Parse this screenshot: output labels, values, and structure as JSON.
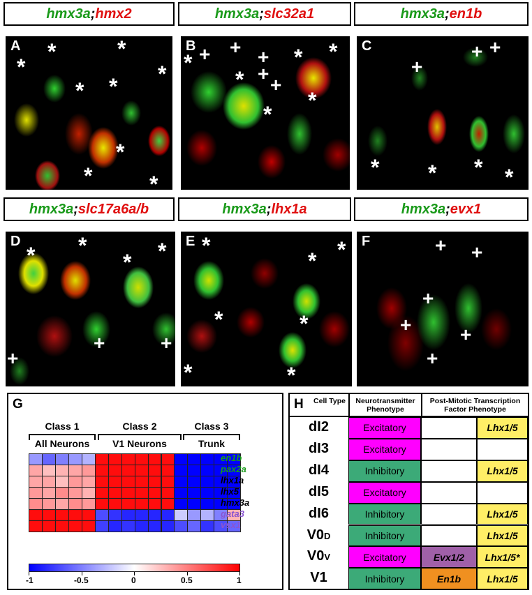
{
  "headers": [
    {
      "green": "hmx3a",
      "sep": ";",
      "red": "hmx2"
    },
    {
      "green": "hmx3a",
      "sep": ";",
      "red": "slc32a1"
    },
    {
      "green": "hmx3a",
      "sep": ";",
      "red": "en1b"
    },
    {
      "green": "hmx3a",
      "sep": ";",
      "red": "slc17a6a/b"
    },
    {
      "green": "hmx3a",
      "sep": ";",
      "red": "lhx1a"
    },
    {
      "green": "hmx3a",
      "sep": ";",
      "red": "evx1"
    }
  ],
  "panel_labels": [
    "A",
    "B",
    "C",
    "D",
    "E",
    "F"
  ],
  "marks": {
    "star": "*",
    "plus": "+"
  },
  "panel_g": {
    "label": "G",
    "classes": [
      {
        "title": "Class 1",
        "subtitle": "All Neurons"
      },
      {
        "title": "Class 2",
        "subtitle": "V1 Neurons"
      },
      {
        "title": "Class 3",
        "subtitle": "Trunk"
      }
    ],
    "genes": [
      {
        "name": "en1b",
        "color": "#1a9a1a"
      },
      {
        "name": "pax2a",
        "color": "#1a9a1a"
      },
      {
        "name": "lhx1a",
        "color": "#000000"
      },
      {
        "name": "lhx5",
        "color": "#000000"
      },
      {
        "name": "hmx3a",
        "color": "#000000"
      },
      {
        "name": "gata3",
        "color": "#8a55d0"
      },
      {
        "name": "vsx1",
        "color": "#8a55d0"
      }
    ],
    "heatmap": [
      [
        -0.4,
        -0.6,
        -0.5,
        -0.4,
        -0.3,
        0.95,
        0.95,
        0.95,
        0.95,
        0.95,
        0.95,
        -1.0,
        -1.0,
        -1.0,
        -1.0,
        -1.0
      ],
      [
        0.35,
        0.25,
        0.3,
        0.35,
        0.4,
        0.95,
        0.95,
        0.95,
        0.95,
        0.95,
        0.95,
        -1.0,
        -1.0,
        -1.0,
        -1.0,
        -1.0
      ],
      [
        0.35,
        0.35,
        0.25,
        0.4,
        0.35,
        0.95,
        0.95,
        0.95,
        0.95,
        0.95,
        0.95,
        -1.0,
        -1.0,
        -1.0,
        -1.0,
        -1.0
      ],
      [
        0.4,
        0.35,
        0.45,
        0.4,
        0.3,
        0.95,
        0.95,
        0.95,
        0.95,
        0.95,
        0.95,
        -1.0,
        -1.0,
        -1.0,
        -1.0,
        -1.0
      ],
      [
        0.45,
        0.4,
        0.35,
        0.45,
        0.4,
        0.95,
        0.95,
        0.95,
        0.95,
        0.95,
        0.95,
        -1.0,
        -1.0,
        -1.0,
        -1.0,
        -1.0
      ],
      [
        0.95,
        0.95,
        0.95,
        0.95,
        0.95,
        -0.7,
        -0.8,
        -0.85,
        -0.85,
        -0.85,
        -0.85,
        -0.2,
        -0.4,
        -0.3,
        -0.5,
        0.3
      ],
      [
        0.95,
        0.95,
        0.95,
        0.95,
        0.95,
        -0.75,
        -0.85,
        -0.8,
        -0.85,
        -0.85,
        -0.85,
        -0.7,
        -0.6,
        -0.8,
        -0.7,
        -0.6
      ]
    ],
    "colorbar_ticks": [
      "-1",
      "-0.5",
      "0",
      "0.5",
      "1"
    ]
  },
  "panel_h": {
    "label": "H",
    "col_headers": [
      "Cell Type",
      "Neurotransmitter Phenotype",
      "Post-Mitotic Transcription Factor Phenotype"
    ],
    "rows": [
      {
        "cell": "dI2",
        "nt": "Excitatory",
        "tf1": "",
        "tf2": "Lhx1/5"
      },
      {
        "cell": "dI3",
        "nt": "Excitatory",
        "tf1": "",
        "tf2": ""
      },
      {
        "cell": "dI4",
        "nt": "Inhibitory",
        "tf1": "",
        "tf2": "Lhx1/5"
      },
      {
        "cell": "dI5",
        "nt": "Excitatory",
        "tf1": "",
        "tf2": ""
      },
      {
        "cell": "dI6",
        "nt": "Inhibitory",
        "tf1": "",
        "tf2": "Lhx1/5"
      },
      {
        "cell": "V0",
        "sub": "D",
        "nt": "Inhibitory",
        "tf1": "",
        "tf2": "Lhx1/5"
      },
      {
        "cell": "V0",
        "sub": "V",
        "nt": "Excitatory",
        "tf1": "Evx1/2",
        "tf2": "Lhx1/5*"
      },
      {
        "cell": "V1",
        "nt": "Inhibitory",
        "tf1": "En1b",
        "tf2": "Lhx1/5"
      }
    ],
    "colors": {
      "excitatory": "#ff00ff",
      "inhibitory": "#3caa78",
      "evx": "#a060a8",
      "en1b": "#f09020",
      "lhx": "#ffee66"
    }
  }
}
